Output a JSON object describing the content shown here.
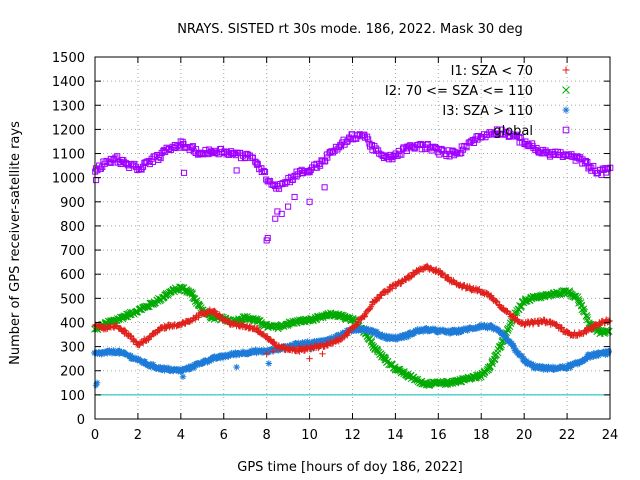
{
  "chart_data": {
    "type": "scatter",
    "title": "NRAYS. SISTED rt 30s mode. 186, 2022. Mask 30 deg",
    "xlabel": "GPS time [hours of doy 186, 2022]",
    "ylabel": "Number of GPS receiver-satellite rays",
    "xlim": [
      0,
      24
    ],
    "ylim": [
      0,
      1500
    ],
    "xticks": [
      0,
      2,
      4,
      6,
      8,
      10,
      12,
      14,
      16,
      18,
      20,
      22,
      24
    ],
    "yticks": [
      0,
      100,
      200,
      300,
      400,
      500,
      600,
      700,
      800,
      900,
      1000,
      1100,
      1200,
      1300,
      1400,
      1500
    ],
    "grid": true,
    "legend_position": "top-right",
    "threshold_line": {
      "y": 100,
      "color": "#00c0c0"
    },
    "series": [
      {
        "name": "I1: SZA < 70",
        "marker": "+",
        "color": "#e0201b",
        "x": [
          0,
          0.5,
          1,
          1.5,
          2,
          2.5,
          3,
          3.5,
          4,
          4.5,
          5,
          5.5,
          6,
          6.5,
          7,
          7.5,
          8,
          8.5,
          9,
          9.5,
          10,
          10.5,
          11,
          11.5,
          12,
          12.5,
          13,
          13.5,
          14,
          14.5,
          15,
          15.5,
          16,
          16.5,
          17,
          17.5,
          18,
          18.5,
          19,
          19.5,
          20,
          20.5,
          21,
          21.5,
          22,
          22.5,
          23,
          23.5,
          24
        ],
        "y": [
          390,
          375,
          385,
          355,
          310,
          335,
          375,
          385,
          390,
          410,
          440,
          450,
          410,
          390,
          385,
          375,
          340,
          300,
          290,
          285,
          295,
          300,
          315,
          330,
          380,
          420,
          490,
          525,
          555,
          580,
          610,
          630,
          610,
          580,
          555,
          540,
          530,
          505,
          460,
          420,
          395,
          400,
          405,
          390,
          355,
          350,
          370,
          395,
          410
        ]
      },
      {
        "name": "I2: 70 <= SZA <= 110",
        "marker": "x",
        "color": "#00aa00",
        "x": [
          0,
          0.5,
          1,
          1.5,
          2,
          2.5,
          3,
          3.5,
          4,
          4.5,
          5,
          5.5,
          6,
          6.5,
          7,
          7.5,
          8,
          8.5,
          9,
          9.5,
          10,
          10.5,
          11,
          11.5,
          12,
          12.5,
          13,
          13.5,
          14,
          14.5,
          15,
          15.5,
          16,
          16.5,
          17,
          17.5,
          18,
          18.5,
          19,
          19.5,
          20,
          20.5,
          21,
          21.5,
          22,
          22.5,
          23,
          23.5,
          24
        ],
        "y": [
          370,
          395,
          410,
          430,
          450,
          470,
          495,
          525,
          545,
          520,
          450,
          420,
          415,
          405,
          420,
          410,
          385,
          380,
          395,
          405,
          410,
          420,
          435,
          425,
          410,
          370,
          300,
          250,
          210,
          185,
          160,
          145,
          148,
          150,
          160,
          170,
          180,
          230,
          320,
          420,
          490,
          505,
          510,
          520,
          530,
          500,
          400,
          360,
          360
        ]
      },
      {
        "name": "I3: SZA > 110",
        "marker": "*",
        "color": "#1e7bd8",
        "x": [
          0,
          0.5,
          1,
          1.5,
          2,
          2.5,
          3,
          3.5,
          4,
          4.5,
          5,
          5.5,
          6,
          6.5,
          7,
          7.5,
          8,
          8.5,
          9,
          9.5,
          10,
          10.5,
          11,
          11.5,
          12,
          12.5,
          13,
          13.5,
          14,
          14.5,
          15,
          15.5,
          16,
          16.5,
          17,
          17.5,
          18,
          18.5,
          19,
          19.5,
          20,
          20.5,
          21,
          21.5,
          22,
          22.5,
          23,
          23.5,
          24
        ],
        "y": [
          270,
          275,
          280,
          265,
          245,
          225,
          210,
          205,
          200,
          215,
          235,
          250,
          260,
          270,
          275,
          280,
          280,
          290,
          300,
          310,
          315,
          320,
          330,
          350,
          370,
          375,
          360,
          340,
          335,
          345,
          365,
          370,
          365,
          360,
          365,
          375,
          385,
          380,
          350,
          300,
          240,
          215,
          210,
          210,
          215,
          230,
          260,
          270,
          275
        ]
      },
      {
        "name": "global",
        "marker": "square",
        "color": "#a000ff",
        "x": [
          0,
          0.5,
          1,
          1.5,
          2,
          2.5,
          3,
          3.5,
          4,
          4.5,
          5,
          5.5,
          6,
          6.5,
          7,
          7.5,
          8,
          8.5,
          9,
          9.5,
          10,
          10.5,
          11,
          11.5,
          12,
          12.5,
          13,
          13.5,
          14,
          14.5,
          15,
          15.5,
          16,
          16.5,
          17,
          17.5,
          18,
          18.5,
          19,
          19.5,
          20,
          20.5,
          21,
          21.5,
          22,
          22.5,
          23,
          23.5,
          24
        ],
        "y": [
          1030,
          1060,
          1080,
          1050,
          1040,
          1060,
          1090,
          1120,
          1140,
          1120,
          1100,
          1110,
          1110,
          1100,
          1090,
          1070,
          1000,
          960,
          990,
          1020,
          1030,
          1060,
          1100,
          1140,
          1170,
          1180,
          1120,
          1080,
          1090,
          1120,
          1130,
          1130,
          1110,
          1100,
          1110,
          1150,
          1170,
          1190,
          1190,
          1170,
          1150,
          1120,
          1100,
          1100,
          1090,
          1080,
          1050,
          1020,
          1040
        ]
      }
    ],
    "outliers": {
      "I3: SZA > 110": {
        "x": [
          0.05,
          0.1,
          4.1,
          6.6,
          8.1,
          10.1
        ],
        "y": [
          140,
          150,
          175,
          215,
          230,
          290
        ]
      },
      "global": {
        "x": [
          0.05,
          4.15,
          6.6,
          8.0,
          8.05,
          8.4,
          8.5,
          8.7,
          9.0,
          9.3,
          10.0,
          10.7
        ],
        "y": [
          990,
          1020,
          1030,
          740,
          750,
          830,
          860,
          850,
          880,
          920,
          900,
          960
        ]
      },
      "I1: SZA < 70": {
        "x": [
          8.0,
          8.3,
          9.5,
          10.0,
          10.6
        ],
        "y": [
          270,
          280,
          300,
          250,
          270
        ]
      }
    }
  }
}
